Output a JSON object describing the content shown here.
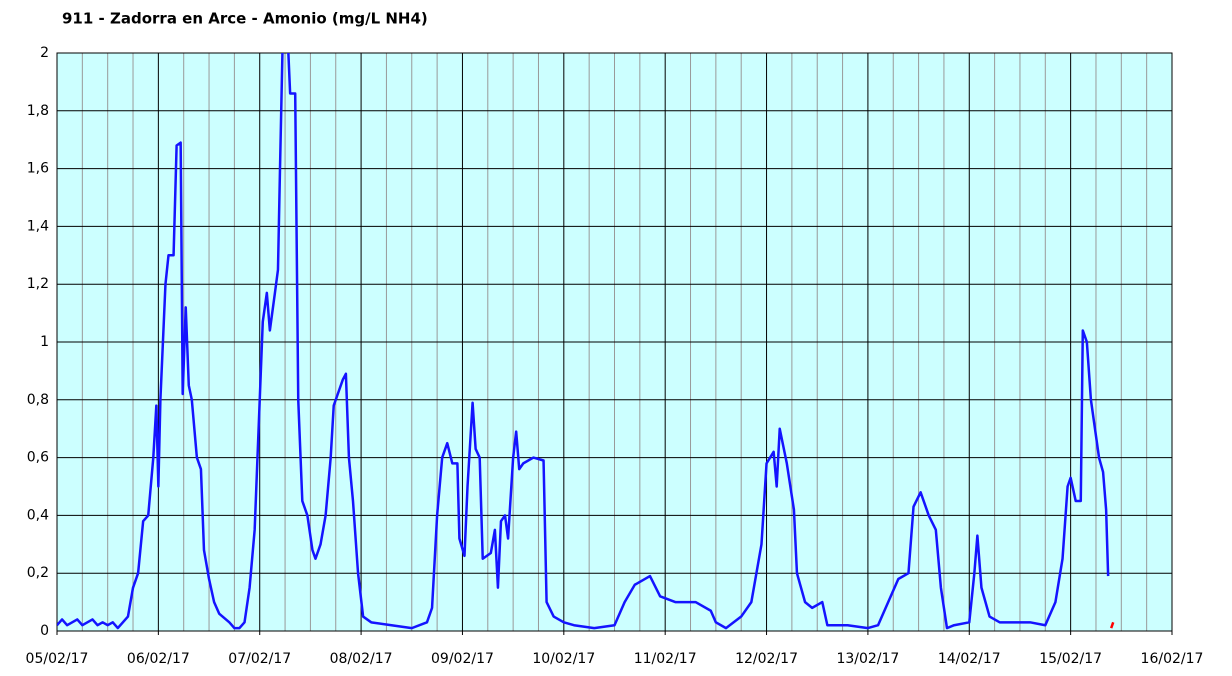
{
  "chart_data": {
    "type": "line",
    "title": "911 - Zadorra en Arce - Amonio (mg/L NH4)",
    "xlim": [
      0,
      11
    ],
    "xticks": [
      {
        "value": 0,
        "label": "05/02/17"
      },
      {
        "value": 1,
        "label": "06/02/17"
      },
      {
        "value": 2,
        "label": "07/02/17"
      },
      {
        "value": 3,
        "label": "08/02/17"
      },
      {
        "value": 4,
        "label": "09/02/17"
      },
      {
        "value": 5,
        "label": "10/02/17"
      },
      {
        "value": 6,
        "label": "11/02/17"
      },
      {
        "value": 7,
        "label": "12/02/17"
      },
      {
        "value": 8,
        "label": "13/02/17"
      },
      {
        "value": 9,
        "label": "14/02/17"
      },
      {
        "value": 10,
        "label": "15/02/17"
      },
      {
        "value": 11,
        "label": "16/02/17"
      }
    ],
    "ylim": [
      0,
      2
    ],
    "yticks": [
      0,
      {
        "value": 0.2,
        "label": "0,2"
      },
      {
        "value": 0.4,
        "label": "0,4"
      },
      {
        "value": 0.6,
        "label": "0,6"
      },
      {
        "value": 0.8,
        "label": "0,8"
      },
      1,
      {
        "value": 1.2,
        "label": "1,2"
      },
      {
        "value": 1.4,
        "label": "1,4"
      },
      {
        "value": 1.6,
        "label": "1,6"
      },
      {
        "value": 1.8,
        "label": "1,8"
      },
      2
    ],
    "grid": true,
    "series": [
      {
        "color": "#1414ff",
        "x": [
          0,
          0.05,
          0.1,
          0.15,
          0.2,
          0.25,
          0.3,
          0.35,
          0.4,
          0.45,
          0.5,
          0.55,
          0.6,
          0.65,
          0.7,
          0.75,
          0.8,
          0.85,
          0.9,
          0.95,
          0.98,
          1.0,
          1.02,
          1.07,
          1.1,
          1.15,
          1.18,
          1.22,
          1.24,
          1.27,
          1.3,
          1.33,
          1.38,
          1.42,
          1.45,
          1.5,
          1.55,
          1.6,
          1.7,
          1.75,
          1.8,
          1.85,
          1.9,
          1.95,
          2.0,
          2.03,
          2.07,
          2.1,
          2.15,
          2.18,
          2.2,
          2.23,
          2.27,
          2.3,
          2.35,
          2.38,
          2.42,
          2.47,
          2.52,
          2.55,
          2.6,
          2.65,
          2.7,
          2.73,
          2.78,
          2.82,
          2.85,
          2.88,
          2.92,
          2.97,
          3.02,
          3.1,
          3.3,
          3.5,
          3.65,
          3.7,
          3.75,
          3.8,
          3.85,
          3.9,
          3.95,
          3.97,
          4.02,
          4.05,
          4.1,
          4.13,
          4.17,
          4.2,
          4.28,
          4.32,
          4.35,
          4.38,
          4.42,
          4.45,
          4.5,
          4.53,
          4.56,
          4.6,
          4.7,
          4.8,
          4.83,
          4.9,
          5.0,
          5.1,
          5.3,
          5.5,
          5.6,
          5.7,
          5.85,
          5.95,
          6.1,
          6.3,
          6.45,
          6.5,
          6.6,
          6.75,
          6.85,
          6.95,
          7.0,
          7.07,
          7.1,
          7.13,
          7.2,
          7.27,
          7.3,
          7.38,
          7.45,
          7.55,
          7.6,
          7.8,
          8.0,
          8.1,
          8.2,
          8.3,
          8.4,
          8.45,
          8.52,
          8.6,
          8.67,
          8.72,
          8.78,
          8.85,
          9.0,
          9.05,
          9.08,
          9.12,
          9.2,
          9.3,
          9.6,
          9.75,
          9.85,
          9.92,
          9.97,
          10.0,
          10.05,
          10.1,
          10.12,
          10.16,
          10.2,
          10.28,
          10.32,
          10.35,
          10.37
        ],
        "values": [
          0.02,
          0.04,
          0.02,
          0.03,
          0.04,
          0.02,
          0.03,
          0.04,
          0.02,
          0.03,
          0.02,
          0.03,
          0.01,
          0.03,
          0.05,
          0.15,
          0.2,
          0.38,
          0.4,
          0.6,
          0.78,
          0.5,
          0.8,
          1.2,
          1.3,
          1.3,
          1.68,
          1.69,
          0.82,
          1.12,
          0.85,
          0.8,
          0.6,
          0.56,
          0.28,
          0.18,
          0.1,
          0.06,
          0.03,
          0.01,
          0.01,
          0.03,
          0.15,
          0.35,
          0.8,
          1.07,
          1.17,
          1.04,
          1.17,
          1.25,
          1.6,
          2.1,
          2.1,
          1.86,
          1.86,
          0.8,
          0.45,
          0.4,
          0.28,
          0.25,
          0.3,
          0.4,
          0.6,
          0.78,
          0.83,
          0.87,
          0.89,
          0.6,
          0.45,
          0.2,
          0.05,
          0.03,
          0.02,
          0.01,
          0.03,
          0.08,
          0.4,
          0.6,
          0.65,
          0.58,
          0.58,
          0.32,
          0.26,
          0.5,
          0.79,
          0.63,
          0.6,
          0.25,
          0.27,
          0.35,
          0.15,
          0.38,
          0.4,
          0.32,
          0.6,
          0.69,
          0.56,
          0.58,
          0.6,
          0.59,
          0.1,
          0.05,
          0.03,
          0.02,
          0.01,
          0.02,
          0.1,
          0.16,
          0.19,
          0.12,
          0.1,
          0.1,
          0.07,
          0.03,
          0.01,
          0.05,
          0.1,
          0.3,
          0.58,
          0.62,
          0.5,
          0.7,
          0.58,
          0.42,
          0.2,
          0.1,
          0.08,
          0.1,
          0.02,
          0.02,
          0.01,
          0.02,
          0.1,
          0.18,
          0.2,
          0.43,
          0.48,
          0.4,
          0.35,
          0.15,
          0.01,
          0.02,
          0.03,
          0.2,
          0.33,
          0.15,
          0.05,
          0.03,
          0.03,
          0.02,
          0.1,
          0.25,
          0.5,
          0.53,
          0.45,
          0.45,
          1.04,
          1.0,
          0.8,
          0.6,
          0.55,
          0.42,
          0.19
        ]
      },
      {
        "color": "#ff0000",
        "x": [
          10.4,
          10.42
        ],
        "values": [
          0.01,
          0.03
        ]
      }
    ]
  }
}
